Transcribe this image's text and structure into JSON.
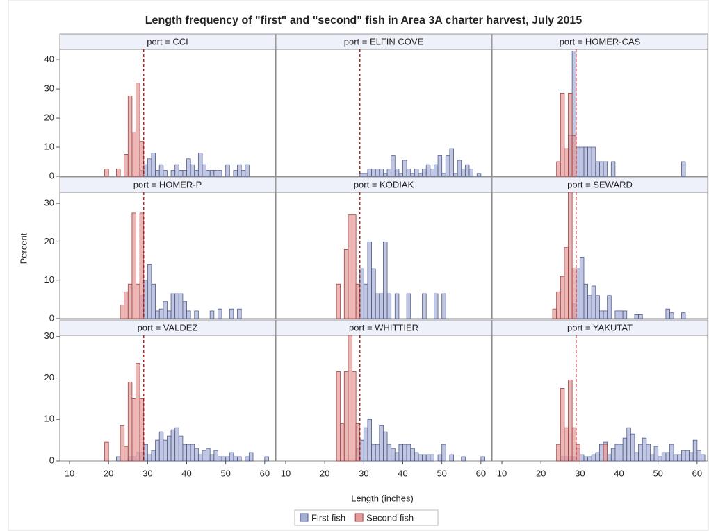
{
  "chart_data": {
    "type": "histogram",
    "title": "Length frequency of \"first\" and \"second\" fish in Area 3A charter harvest, July 2015",
    "xlabel": "Length (inches)",
    "ylabel": "Percent",
    "xlim": [
      7.5,
      62.7
    ],
    "xticks": [
      10,
      20,
      30,
      40,
      50,
      60
    ],
    "reference_line": 29,
    "bins": [
      18,
      19,
      20,
      21,
      22,
      23,
      24,
      25,
      26,
      27,
      28,
      29,
      30,
      31,
      32,
      33,
      34,
      35,
      36,
      37,
      38,
      39,
      40,
      41,
      42,
      43,
      44,
      45,
      46,
      47,
      48,
      49,
      50,
      51,
      52,
      53,
      54,
      55,
      56,
      57,
      58,
      59,
      60,
      61,
      62
    ],
    "series": [
      {
        "name": "First fish",
        "color": "#a7aed4"
      },
      {
        "name": "Second fish",
        "color": "#e39a9a"
      }
    ],
    "rows": [
      {
        "ylim": [
          0,
          43.6
        ],
        "yticks": [
          0,
          10,
          20,
          30,
          40
        ]
      },
      {
        "ylim": [
          0,
          32.9
        ],
        "yticks": [
          0,
          10,
          20,
          30
        ]
      },
      {
        "ylim": [
          0,
          30.3
        ],
        "yticks": [
          0,
          10,
          20,
          30
        ]
      }
    ],
    "panels": [
      {
        "label": "port = CCI",
        "values": [
          [
            0,
            0,
            0,
            0,
            0,
            0,
            0,
            0,
            0,
            0,
            2,
            4,
            6,
            8,
            2,
            4,
            2,
            0,
            2,
            4,
            2,
            2,
            6,
            4,
            2,
            8,
            4,
            2,
            2,
            2,
            2,
            0,
            4,
            0,
            2,
            4,
            2,
            4,
            0,
            0,
            0,
            0,
            0,
            0
          ],
          [
            0,
            2.5,
            0,
            0,
            2.5,
            0,
            7.5,
            27.5,
            15,
            32,
            12,
            0,
            0,
            0,
            0,
            0,
            0,
            0,
            0,
            0,
            0,
            0,
            0,
            0,
            0,
            0,
            0,
            0,
            0,
            0,
            0,
            0,
            0,
            0,
            0,
            0,
            0,
            0,
            0,
            0,
            0,
            0,
            0,
            0
          ]
        ]
      },
      {
        "label": "port = ELFIN COVE",
        "values": [
          [
            0,
            0,
            0,
            0,
            0,
            0,
            0,
            0,
            0,
            0,
            0,
            1,
            1,
            2.5,
            2.5,
            2.5,
            2.5,
            1,
            2.5,
            7,
            2.5,
            1,
            5.5,
            2.5,
            1,
            2.5,
            1,
            2.5,
            4,
            2.5,
            4,
            7,
            1,
            7,
            9.5,
            1,
            5.5,
            2.5,
            4,
            2.5,
            0,
            1,
            0,
            0
          ],
          [
            0,
            0,
            0,
            0,
            0,
            0,
            0,
            0,
            0,
            0,
            0,
            0,
            0,
            0,
            0,
            0,
            0,
            0,
            0,
            0,
            0,
            0,
            0,
            0,
            0,
            0,
            0,
            0,
            0,
            0,
            0,
            0,
            0,
            0,
            0,
            0,
            0,
            0,
            0,
            0,
            0,
            0,
            0,
            0
          ]
        ]
      },
      {
        "label": "port = HOMER-CAS",
        "values": [
          [
            0,
            0,
            0,
            0,
            0,
            0,
            0,
            0,
            0,
            14,
            43,
            10,
            10,
            10,
            10,
            10,
            5,
            5,
            5,
            0,
            5,
            0,
            0,
            0,
            0,
            0,
            0,
            0,
            0,
            0,
            0,
            0,
            0,
            0,
            0,
            0,
            0,
            0,
            5,
            0,
            0,
            0,
            0,
            0
          ],
          [
            0,
            0,
            0,
            0,
            0,
            0,
            5,
            28.5,
            9.5,
            28.5,
            14,
            0,
            0,
            0,
            0,
            0,
            0,
            0,
            0,
            0,
            0,
            0,
            0,
            0,
            0,
            0,
            0,
            0,
            0,
            0,
            0,
            0,
            0,
            0,
            0,
            0,
            0,
            0,
            0,
            0,
            0,
            0,
            0,
            0
          ]
        ]
      },
      {
        "label": "port = HOMER-P",
        "values": [
          [
            0,
            0,
            0,
            0,
            0,
            0,
            0,
            0,
            0,
            0,
            6,
            10,
            14,
            9,
            2,
            2.5,
            4.5,
            2,
            6.5,
            6.5,
            6.5,
            4.5,
            2,
            0,
            2,
            0,
            0,
            0,
            2,
            0,
            2.5,
            0,
            0,
            2.5,
            0,
            2.5,
            0,
            0,
            0,
            0,
            0,
            0,
            0,
            0
          ],
          [
            0,
            0,
            0,
            0,
            0,
            3.5,
            7,
            9,
            27.5,
            9,
            27.5,
            0,
            0,
            0,
            0,
            0,
            0,
            0,
            0,
            0,
            0,
            0,
            0,
            0,
            0,
            0,
            0,
            0,
            0,
            0,
            0,
            0,
            0,
            0,
            0,
            0,
            0,
            0,
            0,
            0,
            0,
            0,
            0,
            0
          ]
        ]
      },
      {
        "label": "port = KODIAK",
        "values": [
          [
            0,
            0,
            0,
            0,
            0,
            0,
            0,
            0,
            0,
            0,
            0,
            13,
            9,
            20,
            13,
            6.5,
            6.5,
            20,
            6.5,
            0,
            6.5,
            0,
            0,
            6.5,
            0,
            0,
            0,
            6.5,
            0,
            0,
            6.5,
            0,
            6.5,
            0,
            0,
            0,
            0,
            0,
            0,
            0,
            0,
            0,
            0,
            0
          ],
          [
            0,
            0,
            0,
            0,
            0,
            9,
            0,
            18,
            27,
            27,
            9,
            0,
            0,
            0,
            0,
            0,
            0,
            0,
            0,
            0,
            0,
            0,
            0,
            0,
            0,
            0,
            0,
            0,
            0,
            0,
            0,
            0,
            0,
            0,
            0,
            0,
            0,
            0,
            0,
            0,
            0,
            0,
            0,
            0
          ]
        ]
      },
      {
        "label": "port = SEWARD",
        "values": [
          [
            0,
            0,
            0,
            0,
            0,
            0,
            0,
            0,
            0,
            0,
            4,
            13,
            16,
            9,
            6,
            8.5,
            6,
            2,
            2,
            6,
            0,
            2,
            2,
            2,
            0,
            0,
            1,
            1,
            0,
            0,
            0,
            0,
            0,
            0,
            2.5,
            1.5,
            0,
            0,
            1.5,
            0,
            0,
            0,
            0,
            0
          ],
          [
            0,
            0,
            0,
            0,
            0,
            2.5,
            7,
            11,
            18.5,
            33,
            13,
            0,
            0,
            0,
            0,
            0,
            0,
            0,
            0,
            0,
            0,
            0,
            0,
            0,
            0,
            0,
            0,
            0,
            0,
            0,
            0,
            0,
            0,
            0,
            0,
            0,
            0,
            0,
            0,
            0,
            0,
            0,
            0,
            0
          ]
        ]
      },
      {
        "label": "port = VALDEZ",
        "values": [
          [
            0,
            0,
            0,
            0,
            1,
            0,
            0,
            1,
            1,
            2,
            2,
            4,
            1.5,
            2.5,
            5,
            7,
            5,
            6,
            7.5,
            8,
            6,
            4,
            4,
            4,
            3,
            1.5,
            2.5,
            3,
            1.5,
            2.5,
            1,
            1,
            1,
            2,
            1,
            1,
            0,
            1,
            2,
            0,
            0,
            0,
            1,
            0
          ],
          [
            0,
            4.5,
            0,
            0,
            0,
            8.5,
            3.5,
            19,
            15,
            23.5,
            15,
            0,
            0,
            0,
            0,
            0,
            0,
            0,
            0,
            0,
            0,
            0,
            0,
            0,
            0,
            0,
            0,
            0,
            0,
            0,
            0,
            0,
            0,
            0,
            0,
            0,
            0,
            0,
            0,
            0,
            0,
            0,
            0,
            0
          ]
        ]
      },
      {
        "label": "port = WHITTIER",
        "values": [
          [
            0,
            0,
            0,
            0,
            0,
            0,
            0,
            0,
            0,
            0,
            3,
            5,
            8,
            10,
            4,
            4,
            8.5,
            7,
            4,
            3,
            2,
            4,
            4,
            4,
            3,
            2,
            1.5,
            1.5,
            1.5,
            1.5,
            0,
            1.5,
            4,
            0,
            1.5,
            0,
            0,
            1,
            0,
            0,
            0,
            0,
            1,
            0
          ],
          [
            0,
            0,
            0,
            0,
            0,
            21.5,
            9,
            21.5,
            30.5,
            21.5,
            9,
            0,
            0,
            0,
            0,
            0,
            0,
            0,
            0,
            0,
            0,
            0,
            0,
            0,
            0,
            0,
            0,
            0,
            0,
            0,
            0,
            0,
            0,
            0,
            0,
            0,
            0,
            0,
            0,
            0,
            0,
            0,
            0,
            0
          ]
        ]
      },
      {
        "label": "port = YAKUTAT",
        "values": [
          [
            0,
            0,
            0,
            0,
            0,
            0,
            0,
            1,
            1,
            1,
            1,
            3,
            1.5,
            1,
            1,
            1.5,
            2,
            4,
            4.5,
            1.5,
            3,
            4,
            4,
            5.5,
            8,
            6.5,
            2,
            4,
            5.5,
            4,
            1.5,
            3.5,
            1,
            2,
            2,
            4,
            1.5,
            1.5,
            2.5,
            2.5,
            2,
            5,
            2.5,
            1.5
          ],
          [
            0,
            0,
            0,
            0,
            0,
            0,
            4,
            17.5,
            8,
            19.5,
            8,
            4,
            0,
            0,
            0,
            0,
            0,
            0,
            4,
            0,
            0,
            0,
            0,
            0,
            0,
            0,
            0,
            0,
            0,
            0,
            0,
            0,
            0,
            0,
            0,
            0,
            0,
            0,
            0,
            0,
            0,
            0,
            0,
            0
          ]
        ]
      }
    ]
  }
}
